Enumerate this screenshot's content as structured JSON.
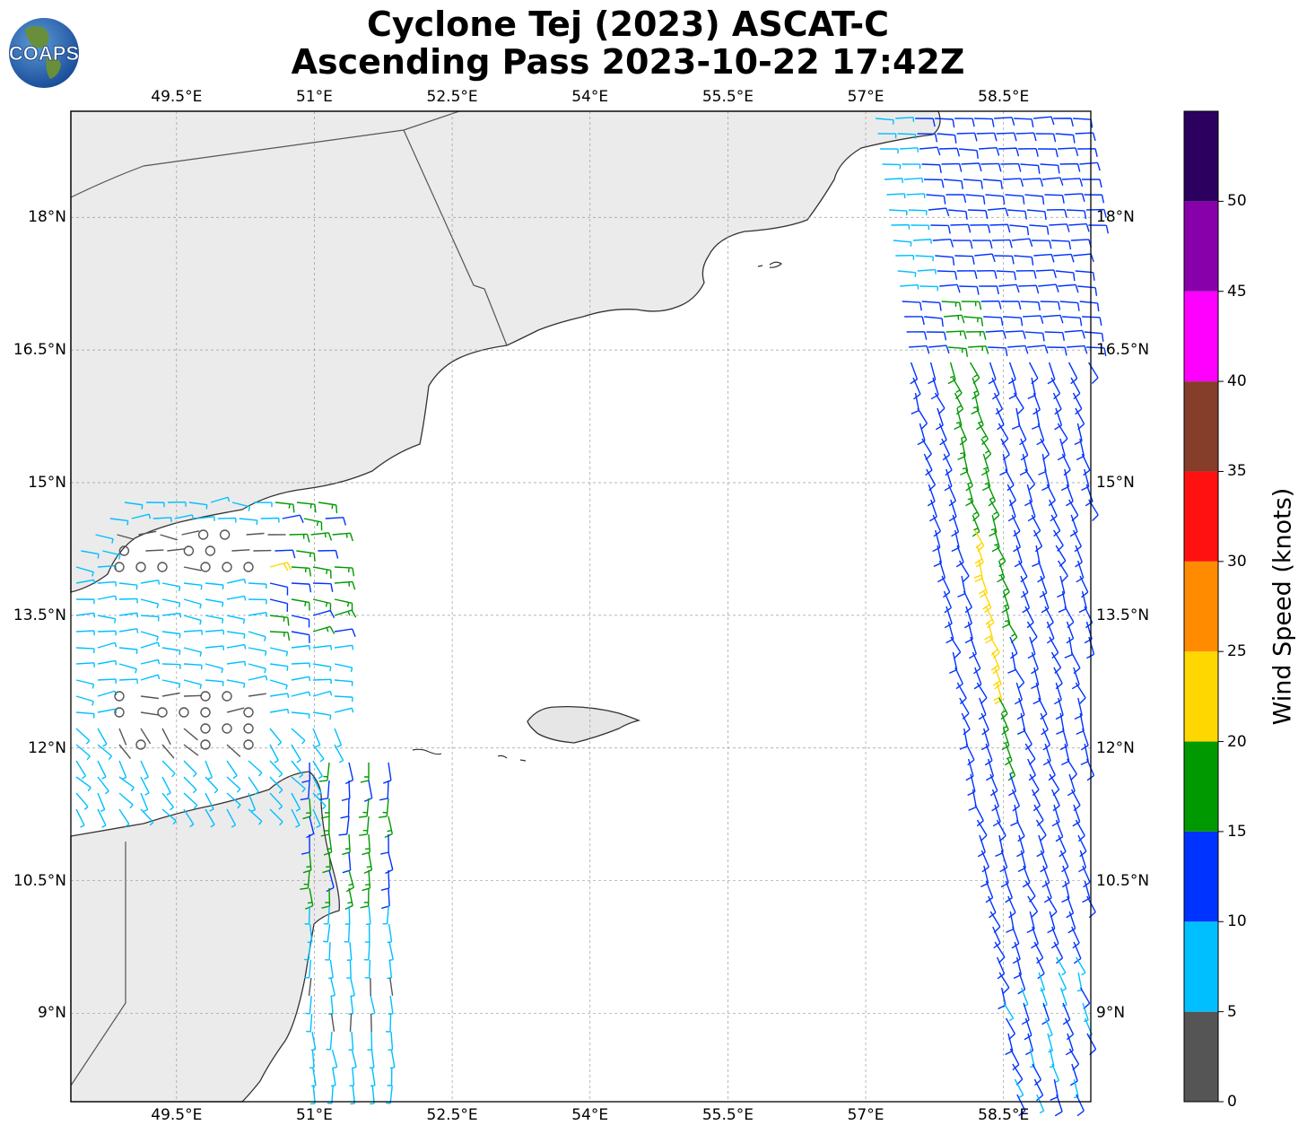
{
  "title": {
    "line1": "Cyclone Tej (2023) ASCAT-C",
    "line2": "Ascending Pass 2023-10-22 17:42Z"
  },
  "logo": {
    "text": "COAPS"
  },
  "map": {
    "lon_min": 48.35,
    "lon_max": 59.45,
    "lat_min": 8.0,
    "lat_max": 19.2,
    "lon_ticks": [
      "49.5°E",
      "51°E",
      "52.5°E",
      "54°E",
      "55.5°E",
      "57°E",
      "58.5°E"
    ],
    "lon_tick_values": [
      49.5,
      51.0,
      52.5,
      54.0,
      55.5,
      57.0,
      58.5
    ],
    "lat_ticks": [
      "18°N",
      "16.5°N",
      "15°N",
      "13.5°N",
      "12°N",
      "10.5°N",
      "9°N"
    ],
    "lat_tick_values": [
      18.0,
      16.5,
      15.0,
      13.5,
      12.0,
      10.5,
      9.0
    ],
    "land_color": "#ececec",
    "coast_color": "#333333"
  },
  "colorbar": {
    "label": "Wind Speed (knots)",
    "ticks": [
      "0",
      "5",
      "10",
      "15",
      "20",
      "25",
      "30",
      "35",
      "40",
      "45",
      "50"
    ],
    "bins": [
      {
        "min": 0,
        "max": 5,
        "color": "#555555"
      },
      {
        "min": 5,
        "max": 10,
        "color": "#00bfff"
      },
      {
        "min": 10,
        "max": 15,
        "color": "#0033ff"
      },
      {
        "min": 15,
        "max": 20,
        "color": "#009900"
      },
      {
        "min": 20,
        "max": 25,
        "color": "#ffd700"
      },
      {
        "min": 25,
        "max": 30,
        "color": "#ff8c00"
      },
      {
        "min": 30,
        "max": 35,
        "color": "#ff1111"
      },
      {
        "min": 35,
        "max": 40,
        "color": "#853e2a"
      },
      {
        "min": 40,
        "max": 45,
        "color": "#ff00ff"
      },
      {
        "min": 45,
        "max": 50,
        "color": "#8800aa"
      },
      {
        "min": 50,
        "max": 55,
        "color": "#2b005e"
      }
    ]
  }
}
